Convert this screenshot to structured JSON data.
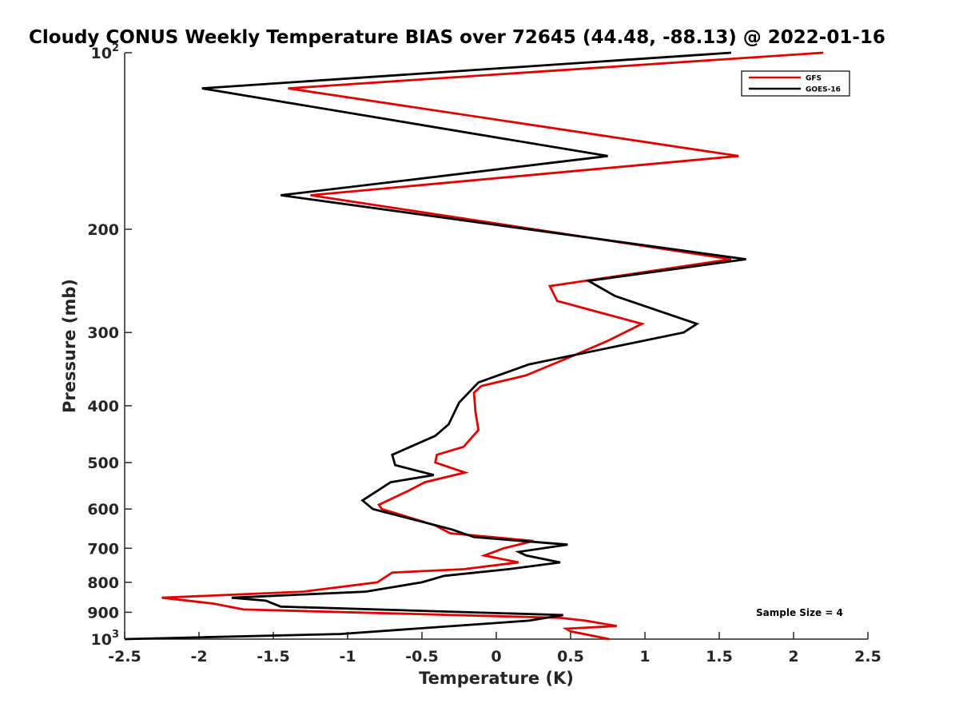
{
  "chart_data": {
    "type": "line",
    "title": "Cloudy CONUS Weekly Temperature BIAS over 72645 (44.48, -88.13) @ 2022-01-16",
    "xlabel": "Temperature (K)",
    "ylabel": "Pressure (mb)",
    "xlim": [
      -2.5,
      2.5
    ],
    "ylim": [
      100,
      1000
    ],
    "y_scale": "log",
    "y_direction": "reversed",
    "grid": false,
    "legend_position": "top-right",
    "x_ticks": [
      {
        "value": -2.5,
        "label": "-2.5"
      },
      {
        "value": -2,
        "label": "-2"
      },
      {
        "value": -1.5,
        "label": "-1.5"
      },
      {
        "value": -1,
        "label": "-1"
      },
      {
        "value": -0.5,
        "label": "-0.5"
      },
      {
        "value": 0,
        "label": "0"
      },
      {
        "value": 0.5,
        "label": "0.5"
      },
      {
        "value": 1,
        "label": "1"
      },
      {
        "value": 1.5,
        "label": "1.5"
      },
      {
        "value": 2,
        "label": "2"
      },
      {
        "value": 2.5,
        "label": "2.5"
      }
    ],
    "y_ticks": [
      {
        "value": 100,
        "label": "10",
        "exponent": "2"
      },
      {
        "value": 200,
        "label": "200"
      },
      {
        "value": 300,
        "label": "300"
      },
      {
        "value": 400,
        "label": "400"
      },
      {
        "value": 500,
        "label": "500"
      },
      {
        "value": 600,
        "label": "600"
      },
      {
        "value": 700,
        "label": "700"
      },
      {
        "value": 800,
        "label": "800"
      },
      {
        "value": 900,
        "label": "900"
      },
      {
        "value": 1000,
        "label": "10",
        "exponent": "3"
      }
    ],
    "series": [
      {
        "name": "GFS",
        "color": "#e00000",
        "points": [
          [
            2.2,
            100
          ],
          [
            -1.4,
            115
          ],
          [
            1.63,
            150
          ],
          [
            -1.25,
            175
          ],
          [
            1.58,
            225
          ],
          [
            0.36,
            250
          ],
          [
            0.41,
            265
          ],
          [
            0.98,
            290
          ],
          [
            0.75,
            310
          ],
          [
            0.5,
            330
          ],
          [
            0.2,
            355
          ],
          [
            -0.1,
            370
          ],
          [
            -0.15,
            380
          ],
          [
            -0.14,
            410
          ],
          [
            -0.12,
            440
          ],
          [
            -0.22,
            470
          ],
          [
            -0.4,
            485
          ],
          [
            -0.41,
            500
          ],
          [
            -0.21,
            520
          ],
          [
            -0.48,
            540
          ],
          [
            -0.6,
            560
          ],
          [
            -0.79,
            590
          ],
          [
            -0.77,
            600
          ],
          [
            -0.41,
            640
          ],
          [
            -0.31,
            660
          ],
          [
            0.25,
            680
          ],
          [
            0.05,
            700
          ],
          [
            -0.08,
            720
          ],
          [
            0.15,
            740
          ],
          [
            -0.22,
            760
          ],
          [
            -0.7,
            770
          ],
          [
            -0.8,
            800
          ],
          [
            -1.3,
            830
          ],
          [
            -2.25,
            850
          ],
          [
            -1.9,
            870
          ],
          [
            -1.7,
            890
          ],
          [
            0.43,
            920
          ],
          [
            0.6,
            930
          ],
          [
            0.81,
            950
          ],
          [
            0.47,
            960
          ],
          [
            0.5,
            970
          ],
          [
            0.76,
            1000
          ]
        ]
      },
      {
        "name": "GOES-16",
        "color": "#000000",
        "points": [
          [
            1.58,
            100
          ],
          [
            -1.98,
            115
          ],
          [
            0.75,
            150
          ],
          [
            -0.6,
            165
          ],
          [
            -1.45,
            175
          ],
          [
            1.68,
            225
          ],
          [
            0.62,
            245
          ],
          [
            0.8,
            260
          ],
          [
            1.35,
            290
          ],
          [
            1.26,
            300
          ],
          [
            0.22,
            340
          ],
          [
            -0.12,
            365
          ],
          [
            -0.25,
            395
          ],
          [
            -0.32,
            430
          ],
          [
            -0.41,
            450
          ],
          [
            -0.7,
            485
          ],
          [
            -0.68,
            505
          ],
          [
            -0.42,
            525
          ],
          [
            -0.71,
            540
          ],
          [
            -0.9,
            580
          ],
          [
            -0.83,
            600
          ],
          [
            -0.3,
            650
          ],
          [
            -0.15,
            670
          ],
          [
            0.48,
            690
          ],
          [
            0.15,
            710
          ],
          [
            0.2,
            720
          ],
          [
            0.43,
            740
          ],
          [
            0.08,
            760
          ],
          [
            -0.35,
            780
          ],
          [
            -0.5,
            800
          ],
          [
            -0.88,
            830
          ],
          [
            -1.78,
            850
          ],
          [
            -1.55,
            860
          ],
          [
            -1.45,
            880
          ],
          [
            0.45,
            910
          ],
          [
            0.22,
            930
          ],
          [
            -1.05,
            980
          ],
          [
            -2.5,
            1000
          ]
        ]
      }
    ],
    "annotations": [
      "Sample Size = 4"
    ]
  }
}
